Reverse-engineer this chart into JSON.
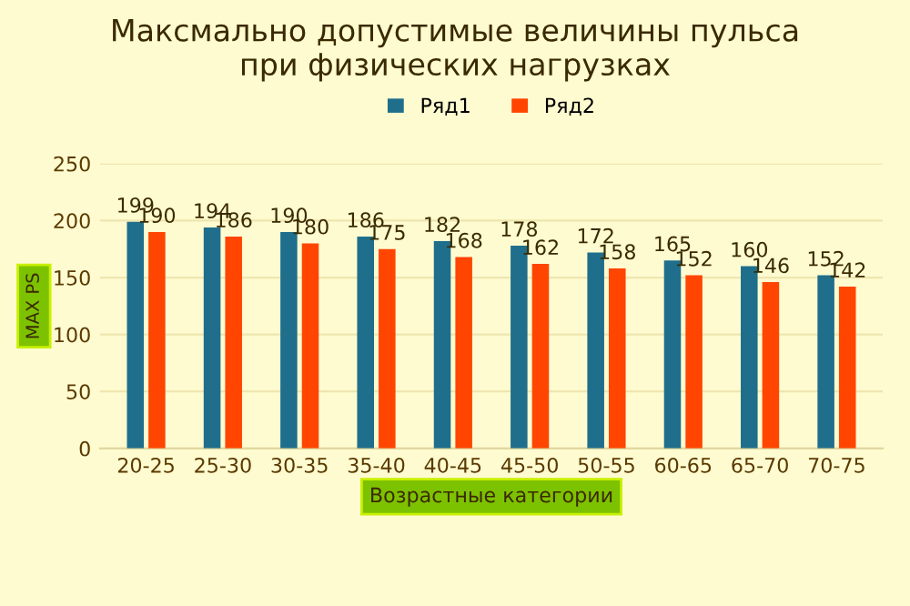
{
  "chart_data": {
    "type": "bar",
    "title": "Максмально допустимые величины пульса\nпри физических нагрузках",
    "xlabel": "Возрастные категории",
    "ylabel": "MAX PS",
    "categories": [
      "20-25",
      "25-30",
      "30-35",
      "35-40",
      "40-45",
      "45-50",
      "50-55",
      "60-65",
      "65-70",
      "70-75"
    ],
    "series": [
      {
        "name": "Ряд1",
        "color": "#1f6e8c",
        "values": [
          199,
          194,
          190,
          186,
          182,
          178,
          172,
          165,
          160,
          152
        ]
      },
      {
        "name": "Ряд2",
        "color": "#ff4500",
        "values": [
          190,
          186,
          180,
          175,
          168,
          162,
          158,
          152,
          146,
          142
        ]
      }
    ],
    "ylim": [
      0,
      250
    ],
    "yticks": [
      0,
      50,
      100,
      150,
      200,
      250
    ],
    "grid": "y",
    "legend": "top",
    "data_labels": true
  }
}
